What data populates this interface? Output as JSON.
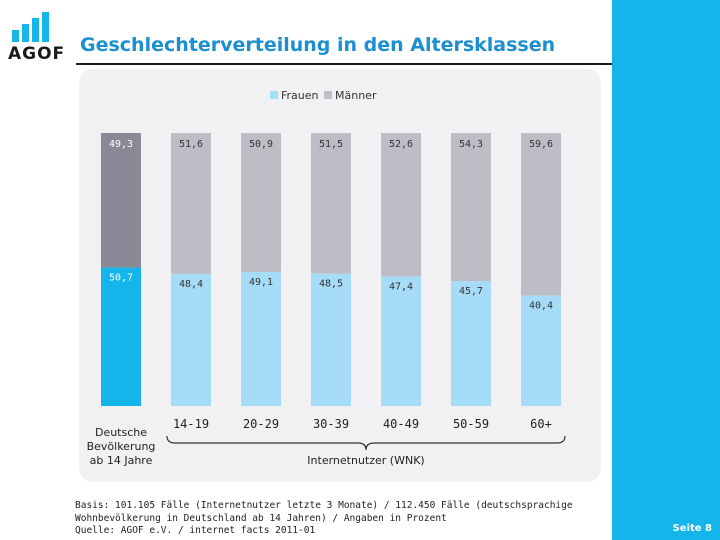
{
  "header": {
    "logo_text": "AGOF",
    "title": "Geschlechterverteilung in den Altersklassen"
  },
  "chart_data": {
    "type": "bar",
    "stacked": true,
    "normalized_percent": true,
    "categories": [
      "Deutsche Bevölkerung ab 14 Jahre",
      "14-19",
      "20-29",
      "30-39",
      "40-49",
      "50-59",
      "60+"
    ],
    "series": [
      {
        "name": "Frauen",
        "color": "#a6dcf8",
        "values": [
          50.7,
          48.4,
          49.1,
          48.5,
          47.4,
          45.7,
          40.4
        ],
        "labels": [
          "50,7",
          "48,4",
          "49,1",
          "48,5",
          "47,4",
          "45,7",
          "40,4"
        ]
      },
      {
        "name": "Männer",
        "color": "#bdbdc5",
        "values": [
          49.3,
          51.6,
          50.9,
          51.5,
          52.6,
          54.3,
          59.6
        ],
        "labels": [
          "49,3",
          "51,6",
          "50,9",
          "51,5",
          "52,6",
          "54,3",
          "59,6"
        ]
      }
    ],
    "first_bar_colors": {
      "Frauen": "#13b5ea",
      "Männer": "#888896"
    },
    "category_labels": [
      "Deutsche\nBevölkerung\nab 14 Jahre",
      "14-19",
      "20-29",
      "30-39",
      "40-49",
      "50-59",
      "60+"
    ],
    "group_label": "Internetnutzer (WNK)",
    "legend": {
      "position": "top-center"
    },
    "ylim": [
      0,
      100
    ],
    "grid": false
  },
  "footer": {
    "lines": [
      "Basis: 101.105 Fälle (Internetnutzer letzte 3 Monate) / 112.450 Fälle (deutschsprachige",
      "Wohnbevölkerung in Deutschland ab 14 Jahren) / Angaben in Prozent",
      "Quelle: AGOF e.V. / internet facts 2011-01"
    ]
  },
  "page": {
    "number": "Seite 8"
  }
}
